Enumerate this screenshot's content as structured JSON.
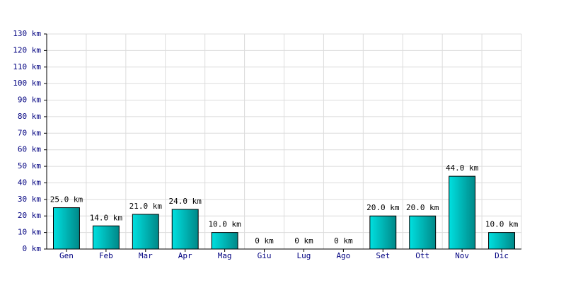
{
  "chart_data": {
    "type": "bar",
    "categories": [
      "Gen",
      "Feb",
      "Mar",
      "Apr",
      "Mag",
      "Giu",
      "Lug",
      "Ago",
      "Set",
      "Ott",
      "Nov",
      "Dic"
    ],
    "values": [
      25,
      14,
      21,
      24,
      10,
      0,
      0,
      0,
      20,
      20,
      44,
      10
    ],
    "value_labels": [
      "25.0 km",
      "14.0 km",
      "21.0 km",
      "24.0 km",
      "10.0 km",
      "0 km",
      "0 km",
      "0 km",
      "20.0 km",
      "20.0 km",
      "44.0 km",
      "10.0 km"
    ],
    "color": "#00e0e0",
    "ylim": [
      0,
      130
    ],
    "yticks": [
      {
        "value": 0,
        "label": "0 km"
      },
      {
        "value": 10,
        "label": "10 km"
      },
      {
        "value": 20,
        "label": "20 km"
      },
      {
        "value": 30,
        "label": "30 km"
      },
      {
        "value": 40,
        "label": "40 km"
      },
      {
        "value": 50,
        "label": "50 km"
      },
      {
        "value": 60,
        "label": "60 km"
      },
      {
        "value": 70,
        "label": "70 km"
      },
      {
        "value": 80,
        "label": "80 km"
      },
      {
        "value": 90,
        "label": "90 km"
      },
      {
        "value": 100,
        "label": "100 km"
      },
      {
        "value": 110,
        "label": "110 km"
      },
      {
        "value": 120,
        "label": "120 km"
      },
      {
        "value": 130,
        "label": "130 km"
      }
    ],
    "grid": true
  }
}
